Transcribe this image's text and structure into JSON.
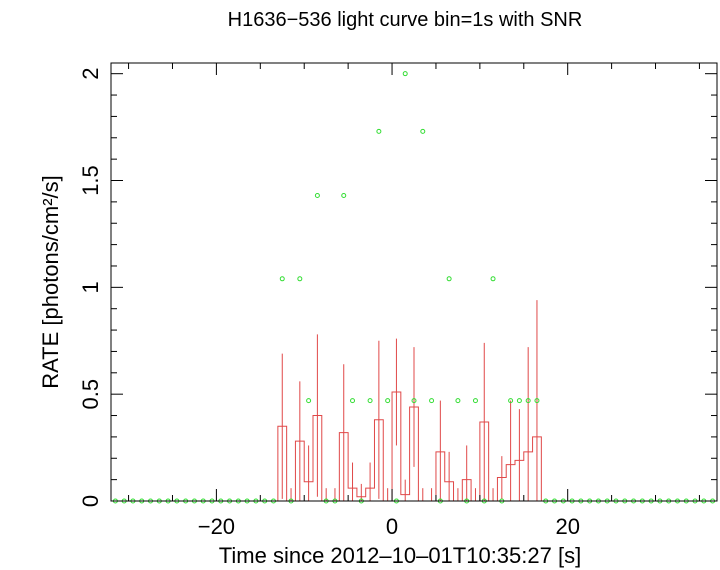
{
  "chart_data": {
    "type": "line",
    "title": "H1636−536 light curve bin=1s with SNR",
    "xlabel": "Time since 2012–10–01T10:35:27 [s]",
    "ylabel": "RATE [photons/cm²/s]",
    "xlim": [
      -32,
      37
    ],
    "ylim": [
      0,
      2.05
    ],
    "xticks": [
      -20,
      0,
      20
    ],
    "xtick_labels": [
      "−20",
      "0",
      "20"
    ],
    "yticks": [
      0,
      0.5,
      1,
      1.5,
      2
    ],
    "ytick_labels": [
      "0",
      "0.5",
      "1",
      "1.5",
      "2"
    ],
    "grid": false,
    "series": [
      {
        "kind": "step",
        "color": "#e04848",
        "start_x": -13,
        "bin_width": 1,
        "values": [
          0.35,
          0,
          0.28,
          0.09,
          0.4,
          0,
          0,
          0.32,
          0.06,
          0.02,
          0.06,
          0.38,
          0,
          0.51,
          0.03,
          0.44,
          0,
          0,
          0.23,
          0.09,
          0,
          0.1,
          0,
          0.37,
          0,
          0.11,
          0.17,
          0.19,
          0.23,
          0.3
        ],
        "errors": [
          0.34,
          0.06,
          0.28,
          0.17,
          0.38,
          0.06,
          0.06,
          0.32,
          0.12,
          0.06,
          0.12,
          0.37,
          0.06,
          0.25,
          0.07,
          0.28,
          0.06,
          0.06,
          0.24,
          0.14,
          0.06,
          0.16,
          0.06,
          0.37,
          0.06,
          0.1,
          0.3,
          0.24,
          0.49,
          0.64
        ]
      },
      {
        "kind": "points",
        "color": "#33dd33",
        "x": [
          -31.5,
          -30.5,
          -29.5,
          -28.5,
          -27.5,
          -26.5,
          -25.5,
          -24.5,
          -23.5,
          -22.5,
          -21.5,
          -20.5,
          -19.5,
          -18.5,
          -17.5,
          -16.5,
          -15.5,
          -14.5,
          -13.5,
          -12.5,
          -11.5,
          -10.5,
          -9.5,
          -8.5,
          -7.5,
          -6.5,
          -5.5,
          -4.5,
          -3.5,
          -2.5,
          -1.5,
          -0.5,
          0.5,
          1.5,
          2.5,
          3.5,
          4.5,
          5.5,
          6.5,
          7.5,
          8.5,
          9.5,
          10.5,
          11.5,
          12.5,
          13.5,
          14.5,
          15.5,
          16.5,
          17.5,
          18.5,
          19.5,
          20.5,
          21.5,
          22.5,
          23.5,
          24.5,
          25.5,
          26.5,
          27.5,
          28.5,
          29.5,
          30.5,
          31.5,
          32.5,
          33.5,
          34.5,
          35.5,
          36.5
        ],
        "y": [
          0,
          0,
          0,
          0,
          0,
          0,
          0,
          0,
          0,
          0,
          0,
          0,
          0,
          0,
          0,
          0,
          0,
          0,
          0,
          1.04,
          0,
          1.04,
          0.47,
          1.43,
          0,
          0,
          1.43,
          0.47,
          0,
          0.47,
          1.73,
          0.47,
          0,
          2.0,
          0.47,
          1.73,
          0.47,
          0,
          1.04,
          0.47,
          0,
          0.47,
          0,
          1.04,
          0,
          0.47,
          0.47,
          0.47,
          0.47,
          0,
          0,
          0,
          0,
          0,
          0,
          0,
          0,
          0,
          0,
          0,
          0,
          0,
          0,
          0,
          0,
          0,
          0,
          0,
          0
        ]
      }
    ]
  }
}
